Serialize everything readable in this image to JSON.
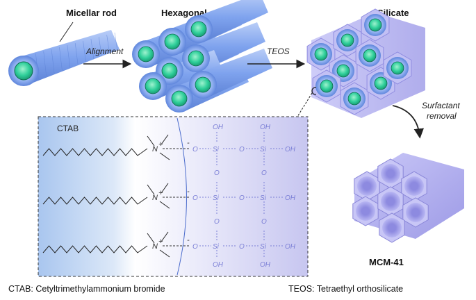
{
  "labels": {
    "micellar_rod": "Micellar rod",
    "hexagonal_array": "Hexagonal array",
    "silicate": "Silicate",
    "alignment": "Alignment",
    "teos": "TEOS",
    "surfactant_removal_1": "Surfactant",
    "surfactant_removal_2": "removal",
    "mcm41": "MCM-41",
    "ctab": "CTAB"
  },
  "chemistry": {
    "nitrogen": "N",
    "plus": "+",
    "minus": "-",
    "oxygen": "O",
    "silicon": "Si",
    "hydroxyl": "OH"
  },
  "footer": {
    "ctab_def": "CTAB: Cetyltrimethylammonium bromide",
    "teos_def": "TEOS: Tetraethyl orthosilicate"
  },
  "colors": {
    "rod_blue": "#8fb0f2",
    "core_green": "#2fcf9a",
    "silica_lavender": "#b8b6f2",
    "chem_purple": "#7b7fd6"
  }
}
